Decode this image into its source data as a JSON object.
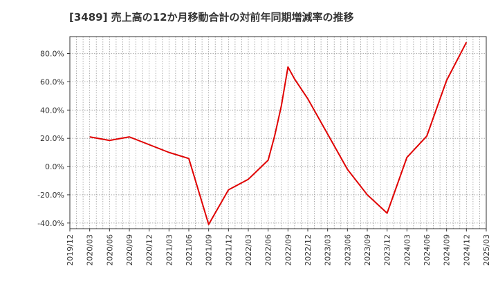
{
  "title": "[3489]  売上高の12か月移動合計の対前年同期増減率の推移",
  "colors": {
    "line": "#e00000",
    "axis": "#333333",
    "grid": "#999999"
  },
  "chart_data": {
    "type": "line",
    "title": "[3489]  売上高の12か月移動合計の対前年同期増減率の推移",
    "xlabel": "",
    "ylabel": "",
    "x_ticks": [
      "2019/12",
      "2020/03",
      "2020/06",
      "2020/09",
      "2020/12",
      "2021/03",
      "2021/06",
      "2021/09",
      "2021/12",
      "2022/03",
      "2022/06",
      "2022/09",
      "2022/12",
      "2023/03",
      "2023/06",
      "2023/09",
      "2023/12",
      "2024/03",
      "2024/06",
      "2024/09",
      "2024/12",
      "2025/03"
    ],
    "y_ticks": [
      "-40.0%",
      "-20.0%",
      "0.0%",
      "20.0%",
      "40.0%",
      "60.0%",
      "80.0%"
    ],
    "ylim": [
      -44,
      92
    ],
    "y_unit": "%",
    "grid": true,
    "series": [
      {
        "x": [
          "2020/03",
          "2020/06",
          "2020/09",
          "2020/12",
          "2021/03",
          "2021/06",
          "2021/09",
          "2021/12",
          "2022/03",
          "2022/06",
          "2022/07",
          "2022/08",
          "2022/09",
          "2022/10",
          "2022/12",
          "2023/03",
          "2023/06",
          "2023/09",
          "2023/12",
          "2024/03",
          "2024/06",
          "2024/09",
          "2024/12"
        ],
        "values": [
          21,
          18.5,
          21,
          15.5,
          10,
          5.7,
          -41,
          -16.5,
          -9,
          4.5,
          22,
          43,
          70.5,
          62,
          48,
          23,
          -2,
          -20,
          -33,
          6.5,
          21.5,
          61,
          88
        ]
      }
    ]
  }
}
